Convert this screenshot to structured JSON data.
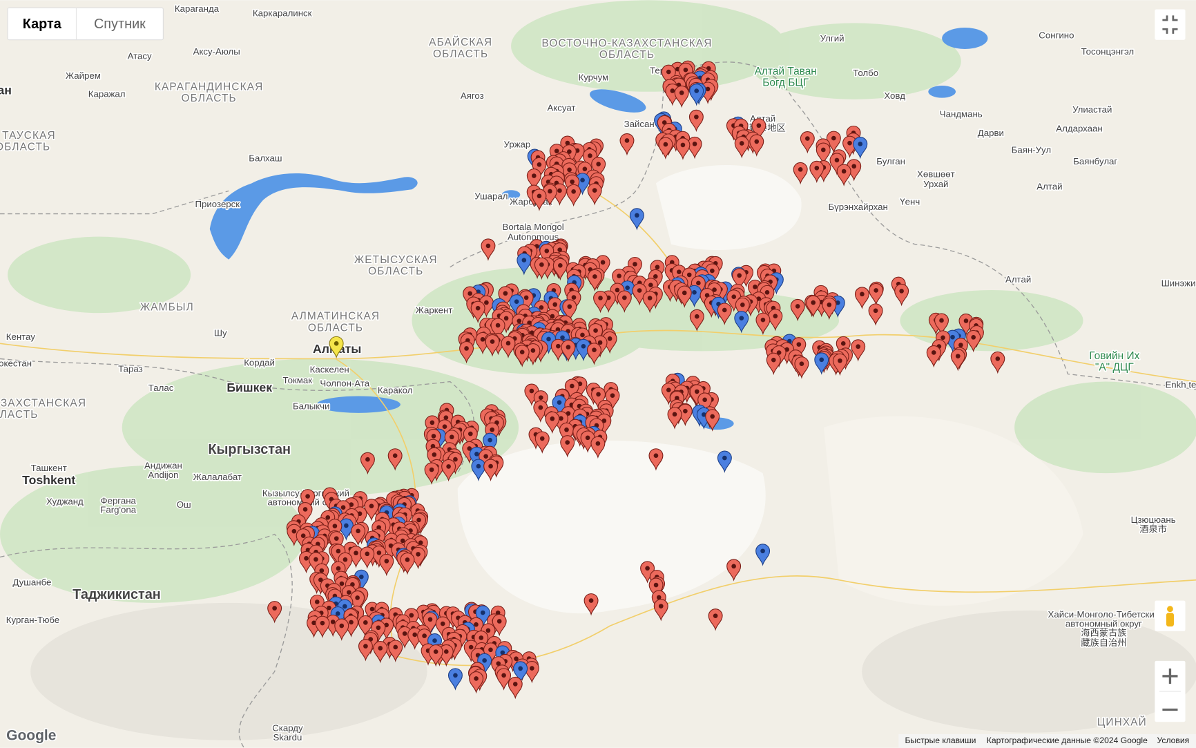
{
  "controls": {
    "map": "Карта",
    "satellite": "Спутник"
  },
  "labels": [
    "Караганда",
    "Каркаралинск",
    "АБАЙСКАЯ",
    "ОБЛАСТЬ",
    "ВОСТОЧНО-КАЗАХСТАНСКАЯ",
    "ОБЛАСТЬ",
    "Атасу",
    "Аксу-Аюлы",
    "Жайрем",
    "Каражал",
    "КАРАГАНДИНСКАЯ",
    "ОБЛАСТЬ",
    "Курчум",
    "Аягоз",
    "Аксуат",
    "Зайсан",
    "Теректы",
    "Алтай Таван",
    "Богд БЦГ",
    "Алтай",
    "阿勒泰地区",
    "Улгий",
    "Толбо",
    "Ховд",
    "Сонгино",
    "Тосонцэнгэл",
    "Улиастай",
    "Алдархаан",
    "Чандмань",
    "Дарви",
    "Баян-Уул",
    "Баянбулаг",
    "Булган",
    "Хөвшөөт",
    "Урхай",
    "Алтай",
    "Бүрэнхайрхан",
    "Үенч",
    "Алтай",
    "Шинэжи",
    "Говийн Их",
    "\"А\" ДЦГ",
    "Enkh te",
    "Уржар",
    "Балхаш",
    "Ушарал",
    "Жарбулак",
    "Приозерск",
    "Bortala Mongol",
    "Autonomous",
    "ЖЕТЫСУСКАЯ",
    "ОБЛАСТЬ",
    "ЖАМБЫЛ",
    "АЛМАТИНСКАЯ",
    "ОБЛАСТЬ",
    "Жаркент",
    "Кентау",
    "Шу",
    "Алматы",
    "Каскелен",
    "Кордай",
    "Токмак",
    "Чолпон-Ата",
    "Каракол",
    "Тараз",
    "Талас",
    "Бишкек",
    "Балыкчи",
    "ТАУСКАЯ",
    "ОБЛАСТЬ",
    "ан",
    "Кыргызстан",
    "ЗАХСТАНСКАЯ",
    "ЛАСТЬ",
    "окестан",
    "Ташкент",
    "Toshkent",
    "Андижан",
    "Andijon",
    "Жалалабат",
    "Худжанд",
    "Фергана",
    "Farg'ona",
    "Ош",
    "Кызылсу-Киргизский",
    "автономный округ",
    "Душанбе",
    "Таджикистан",
    "Курган-Тюбе",
    "Скарду",
    "Skardu",
    "Цзюцюань",
    "酒泉市",
    "Хайси-Монголо-Тибетский",
    "автономный округ",
    "海西蒙古族",
    "藏族自治州",
    "ЦИНХАЙ"
  ],
  "logo": "Google",
  "footer": {
    "shortcuts": "Быстрые клавиши",
    "copyright": "Картографические данные ©2024 Google",
    "terms": "Условия"
  }
}
